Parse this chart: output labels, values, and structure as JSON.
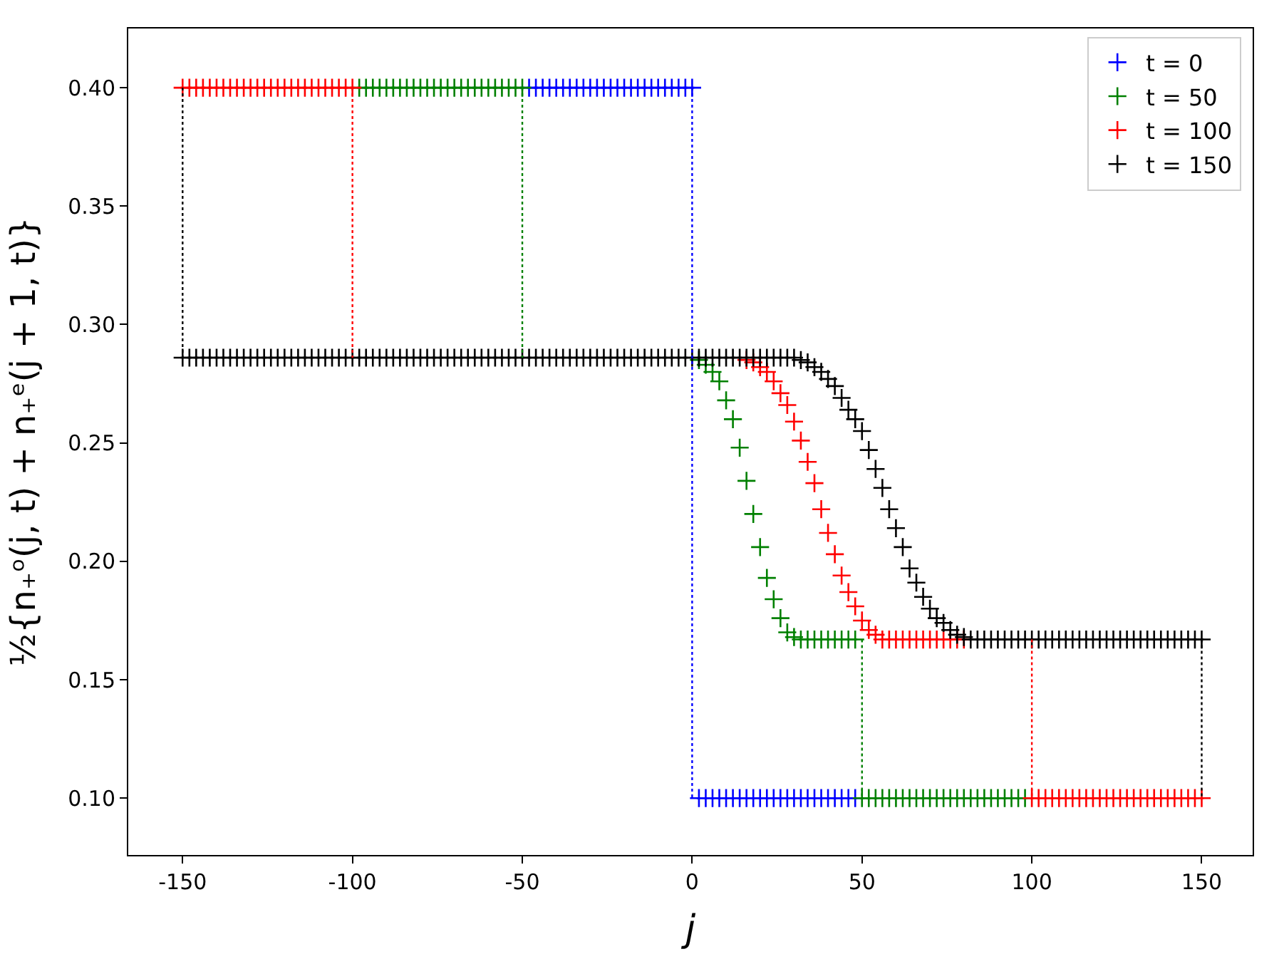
{
  "chart_data": {
    "type": "scatter",
    "xlabel": "j",
    "ylabel": "½{n₊ᵒ(j, t) + n₊ᵉ(j + 1, t)}",
    "xlim": [
      -166,
      165
    ],
    "ylim": [
      0.076,
      0.425
    ],
    "xticks": [
      -150,
      -100,
      -50,
      0,
      50,
      100,
      150
    ],
    "yticks": [
      {
        "value": 0.1,
        "label": "0.10"
      },
      {
        "value": 0.15,
        "label": "0.15"
      },
      {
        "value": 0.2,
        "label": "0.20"
      },
      {
        "value": 0.25,
        "label": "0.25"
      },
      {
        "value": 0.3,
        "label": "0.30"
      },
      {
        "value": 0.35,
        "label": "0.35"
      },
      {
        "value": 0.4,
        "label": "0.40"
      }
    ],
    "legend": "top right",
    "marker": "cross",
    "series": [
      {
        "name": "t = 0",
        "color": "#0000ff",
        "x": [
          -48,
          -46,
          -44,
          -42,
          -40,
          -38,
          -36,
          -34,
          -32,
          -30,
          -28,
          -26,
          -24,
          -22,
          -20,
          -18,
          -16,
          -14,
          -12,
          -10,
          -8,
          -6,
          -4,
          -2,
          0,
          2,
          4,
          6,
          8,
          10,
          12,
          14,
          16,
          18,
          20,
          22,
          24,
          26,
          28,
          30,
          32,
          34,
          36,
          38,
          40,
          42,
          44,
          46,
          48
        ],
        "values": [
          0.4,
          0.4,
          0.4,
          0.4,
          0.4,
          0.4,
          0.4,
          0.4,
          0.4,
          0.4,
          0.4,
          0.4,
          0.4,
          0.4,
          0.4,
          0.4,
          0.4,
          0.4,
          0.4,
          0.4,
          0.4,
          0.4,
          0.4,
          0.4,
          0.4,
          0.1,
          0.1,
          0.1,
          0.1,
          0.1,
          0.1,
          0.1,
          0.1,
          0.1,
          0.1,
          0.1,
          0.1,
          0.1,
          0.1,
          0.1,
          0.1,
          0.1,
          0.1,
          0.1,
          0.1,
          0.1,
          0.1,
          0.1,
          0.1
        ]
      },
      {
        "name": "t = 50",
        "color": "#008000",
        "x": [
          -98,
          -96,
          -94,
          -92,
          -90,
          -88,
          -86,
          -84,
          -82,
          -80,
          -78,
          -76,
          -74,
          -72,
          -70,
          -68,
          -66,
          -64,
          -62,
          -60,
          -58,
          -56,
          -54,
          -52,
          -50,
          2,
          4,
          6,
          8,
          10,
          12,
          14,
          16,
          18,
          20,
          22,
          24,
          26,
          28,
          30,
          32,
          34,
          36,
          38,
          40,
          42,
          44,
          46,
          48,
          50,
          52,
          54,
          56,
          58,
          60,
          62,
          64,
          66,
          68,
          70,
          72,
          74,
          76,
          78,
          80,
          82,
          84,
          86,
          88,
          90,
          92,
          94,
          96,
          98
        ],
        "values": [
          0.4,
          0.4,
          0.4,
          0.4,
          0.4,
          0.4,
          0.4,
          0.4,
          0.4,
          0.4,
          0.4,
          0.4,
          0.4,
          0.4,
          0.4,
          0.4,
          0.4,
          0.4,
          0.4,
          0.4,
          0.4,
          0.4,
          0.4,
          0.4,
          0.4,
          0.285,
          0.283,
          0.28,
          0.276,
          0.268,
          0.26,
          0.248,
          0.234,
          0.22,
          0.206,
          0.193,
          0.184,
          0.176,
          0.17,
          0.168,
          0.167,
          0.167,
          0.167,
          0.167,
          0.167,
          0.167,
          0.167,
          0.167,
          0.167,
          0.1,
          0.1,
          0.1,
          0.1,
          0.1,
          0.1,
          0.1,
          0.1,
          0.1,
          0.1,
          0.1,
          0.1,
          0.1,
          0.1,
          0.1,
          0.1,
          0.1,
          0.1,
          0.1,
          0.1,
          0.1,
          0.1,
          0.1,
          0.1,
          0.1
        ]
      },
      {
        "name": "t = 100",
        "color": "#ff0000",
        "x": [
          -150,
          -148,
          -146,
          -144,
          -142,
          -140,
          -138,
          -136,
          -134,
          -132,
          -130,
          -128,
          -126,
          -124,
          -122,
          -120,
          -118,
          -116,
          -114,
          -112,
          -110,
          -108,
          -106,
          -104,
          -102,
          -100,
          16,
          18,
          20,
          22,
          24,
          26,
          28,
          30,
          32,
          34,
          36,
          38,
          40,
          42,
          44,
          46,
          48,
          50,
          52,
          54,
          56,
          58,
          60,
          62,
          64,
          66,
          68,
          70,
          72,
          74,
          76,
          78,
          80,
          100,
          102,
          104,
          106,
          108,
          110,
          112,
          114,
          116,
          118,
          120,
          122,
          124,
          126,
          128,
          130,
          132,
          134,
          136,
          138,
          140,
          142,
          144,
          146,
          148,
          150
        ],
        "values": [
          0.4,
          0.4,
          0.4,
          0.4,
          0.4,
          0.4,
          0.4,
          0.4,
          0.4,
          0.4,
          0.4,
          0.4,
          0.4,
          0.4,
          0.4,
          0.4,
          0.4,
          0.4,
          0.4,
          0.4,
          0.4,
          0.4,
          0.4,
          0.4,
          0.4,
          0.4,
          0.285,
          0.284,
          0.282,
          0.28,
          0.276,
          0.271,
          0.266,
          0.259,
          0.251,
          0.242,
          0.233,
          0.222,
          0.212,
          0.203,
          0.194,
          0.187,
          0.181,
          0.175,
          0.171,
          0.169,
          0.167,
          0.167,
          0.167,
          0.167,
          0.167,
          0.167,
          0.167,
          0.167,
          0.167,
          0.167,
          0.167,
          0.167,
          0.167,
          0.1,
          0.1,
          0.1,
          0.1,
          0.1,
          0.1,
          0.1,
          0.1,
          0.1,
          0.1,
          0.1,
          0.1,
          0.1,
          0.1,
          0.1,
          0.1,
          0.1,
          0.1,
          0.1,
          0.1,
          0.1,
          0.1,
          0.1,
          0.1,
          0.1,
          0.1
        ]
      },
      {
        "name": "t = 150",
        "color": "#000000",
        "x": [
          -150,
          -148,
          -146,
          -144,
          -142,
          -140,
          -138,
          -136,
          -134,
          -132,
          -130,
          -128,
          -126,
          -124,
          -122,
          -120,
          -118,
          -116,
          -114,
          -112,
          -110,
          -108,
          -106,
          -104,
          -102,
          -100,
          -98,
          -96,
          -94,
          -92,
          -90,
          -88,
          -86,
          -84,
          -82,
          -80,
          -78,
          -76,
          -74,
          -72,
          -70,
          -68,
          -66,
          -64,
          -62,
          -60,
          -58,
          -56,
          -54,
          -52,
          -50,
          -48,
          -46,
          -44,
          -42,
          -40,
          -38,
          -36,
          -34,
          -32,
          -30,
          -28,
          -26,
          -24,
          -22,
          -20,
          -18,
          -16,
          -14,
          -12,
          -10,
          -8,
          -6,
          -4,
          -2,
          0,
          2,
          4,
          6,
          8,
          10,
          12,
          14,
          16,
          18,
          20,
          22,
          24,
          26,
          28,
          30,
          32,
          34,
          36,
          38,
          40,
          42,
          44,
          46,
          48,
          50,
          52,
          54,
          56,
          58,
          60,
          62,
          64,
          66,
          68,
          70,
          72,
          74,
          76,
          78,
          80,
          82,
          84,
          86,
          88,
          90,
          92,
          94,
          96,
          98,
          100,
          102,
          104,
          106,
          108,
          110,
          112,
          114,
          116,
          118,
          120,
          122,
          124,
          126,
          128,
          130,
          132,
          134,
          136,
          138,
          140,
          142,
          144,
          146,
          148,
          150
        ],
        "values": [
          0.286,
          0.286,
          0.286,
          0.286,
          0.286,
          0.286,
          0.286,
          0.286,
          0.286,
          0.286,
          0.286,
          0.286,
          0.286,
          0.286,
          0.286,
          0.286,
          0.286,
          0.286,
          0.286,
          0.286,
          0.286,
          0.286,
          0.286,
          0.286,
          0.286,
          0.286,
          0.286,
          0.286,
          0.286,
          0.286,
          0.286,
          0.286,
          0.286,
          0.286,
          0.286,
          0.286,
          0.286,
          0.286,
          0.286,
          0.286,
          0.286,
          0.286,
          0.286,
          0.286,
          0.286,
          0.286,
          0.286,
          0.286,
          0.286,
          0.286,
          0.286,
          0.286,
          0.286,
          0.286,
          0.286,
          0.286,
          0.286,
          0.286,
          0.286,
          0.286,
          0.286,
          0.286,
          0.286,
          0.286,
          0.286,
          0.286,
          0.286,
          0.286,
          0.286,
          0.286,
          0.286,
          0.286,
          0.286,
          0.286,
          0.286,
          0.286,
          0.286,
          0.286,
          0.286,
          0.286,
          0.286,
          0.286,
          0.286,
          0.286,
          0.286,
          0.286,
          0.286,
          0.286,
          0.286,
          0.286,
          0.286,
          0.285,
          0.284,
          0.282,
          0.28,
          0.277,
          0.274,
          0.269,
          0.264,
          0.26,
          0.255,
          0.247,
          0.239,
          0.231,
          0.222,
          0.214,
          0.206,
          0.197,
          0.191,
          0.185,
          0.18,
          0.176,
          0.174,
          0.171,
          0.169,
          0.168,
          0.167,
          0.167,
          0.167,
          0.167,
          0.167,
          0.167,
          0.167,
          0.167,
          0.167,
          0.167,
          0.167,
          0.167,
          0.167,
          0.167,
          0.167,
          0.167,
          0.167,
          0.167,
          0.167,
          0.167,
          0.167,
          0.167,
          0.167,
          0.167,
          0.167,
          0.167,
          0.167,
          0.167,
          0.167,
          0.167,
          0.167,
          0.167,
          0.167,
          0.167,
          0.167
        ]
      },
      {
        "type": "line",
        "line_style": "dotted",
        "marker": "none",
        "color": "#0000ff",
        "x": [
          0,
          0
        ],
        "values": [
          0.4,
          0.1
        ]
      },
      {
        "type": "line",
        "line_style": "dotted",
        "marker": "none",
        "color": "#008000",
        "x": [
          -50,
          -50,
          0,
          50,
          50
        ],
        "values": [
          0.4,
          0.286,
          null,
          0.167,
          0.1
        ]
      },
      {
        "type": "line",
        "line_style": "dotted",
        "marker": "none",
        "color": "#ff0000",
        "x": [
          -100,
          -100,
          0,
          100,
          100
        ],
        "values": [
          0.4,
          0.286,
          null,
          0.167,
          0.1
        ]
      },
      {
        "type": "line",
        "line_style": "dotted",
        "marker": "none",
        "color": "#000000",
        "x": [
          -150,
          -150,
          0,
          150,
          150
        ],
        "values": [
          0.4,
          0.286,
          null,
          0.167,
          0.1
        ]
      }
    ]
  }
}
